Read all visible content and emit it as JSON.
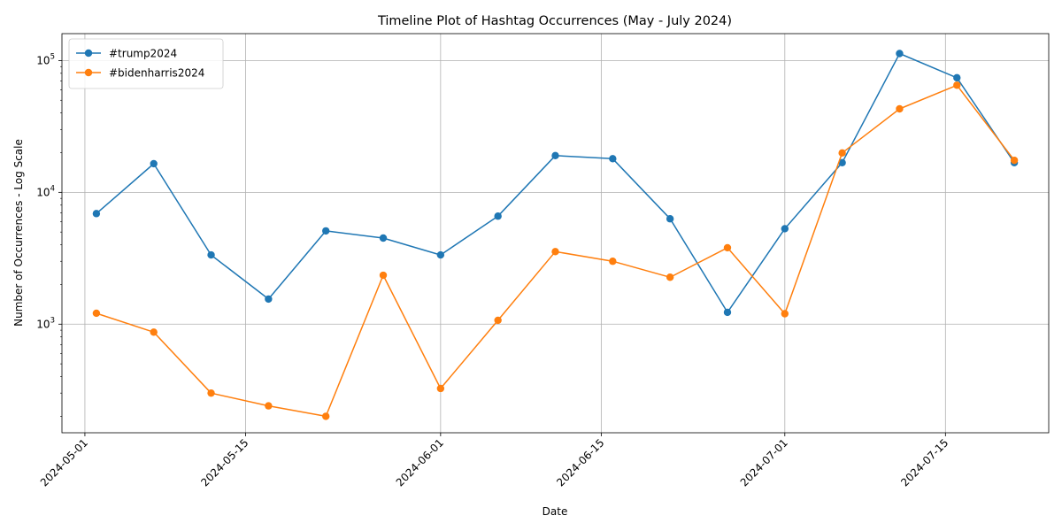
{
  "chart_data": {
    "type": "line",
    "title": "Timeline Plot of Hashtag Occurrences (May - July 2024)",
    "xlabel": "Date",
    "ylabel": "Number of Occurrences - Log Scale",
    "y_scale": "log",
    "xlim": [
      "2024-04-29",
      "2024-07-24"
    ],
    "ylim": [
      150,
      160000
    ],
    "x_ticks": [
      "2024-05-01",
      "2024-05-15",
      "2024-06-01",
      "2024-06-15",
      "2024-07-01",
      "2024-07-15"
    ],
    "y_ticks": [
      {
        "value": 1000,
        "base": "10",
        "exp": "3"
      },
      {
        "value": 10000,
        "base": "10",
        "exp": "4"
      },
      {
        "value": 100000,
        "base": "10",
        "exp": "5"
      }
    ],
    "grid": true,
    "legend_position": "top-left",
    "x": [
      "2024-05-02",
      "2024-05-07",
      "2024-05-12",
      "2024-05-17",
      "2024-05-22",
      "2024-05-27",
      "2024-06-01",
      "2024-06-06",
      "2024-06-11",
      "2024-06-16",
      "2024-06-21",
      "2024-06-26",
      "2024-07-01",
      "2024-07-06",
      "2024-07-11",
      "2024-07-16",
      "2024-07-21"
    ],
    "series": [
      {
        "name": "#trump2024",
        "color": "#1f77b4",
        "values": [
          6900,
          16500,
          3350,
          1550,
          5100,
          4500,
          3350,
          6600,
          19000,
          18000,
          6300,
          1230,
          5300,
          16800,
          113000,
          74000,
          16800
        ]
      },
      {
        "name": "#bidenharris2024",
        "color": "#ff7f0e",
        "values": [
          1210,
          870,
          300,
          240,
          200,
          2350,
          325,
          1070,
          3550,
          3000,
          2270,
          3800,
          1200,
          19900,
          43000,
          65000,
          17500
        ]
      }
    ]
  }
}
